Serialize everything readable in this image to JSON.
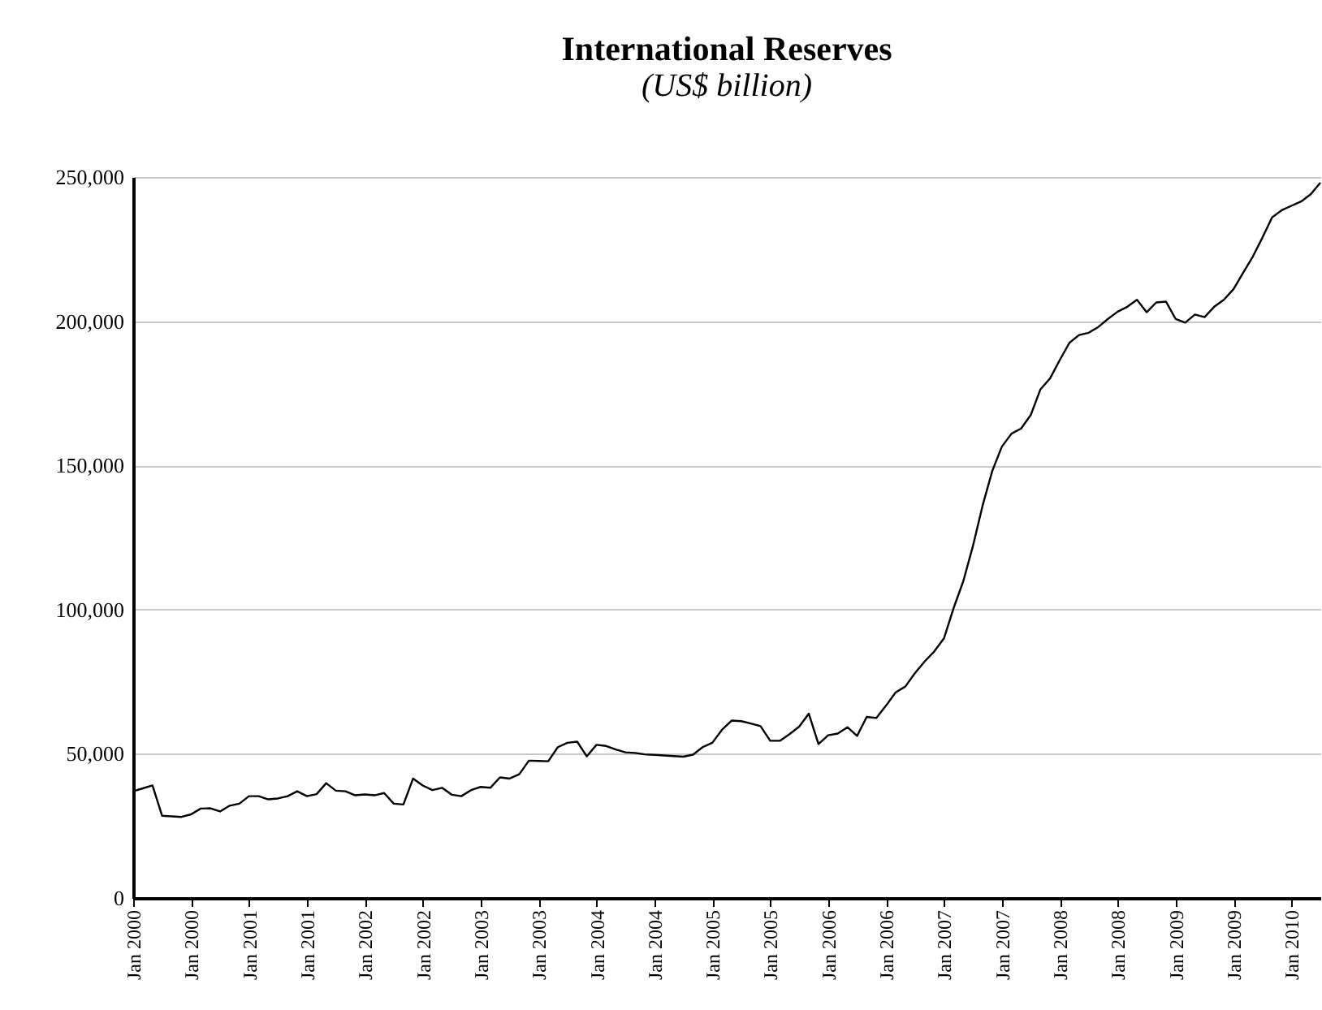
{
  "chart_data": {
    "type": "line",
    "title": "International Reserves",
    "subtitle": "(US$ billion)",
    "categories": [
      "Jan 2000",
      null,
      null,
      null,
      null,
      null,
      "Jan 2000",
      null,
      null,
      null,
      null,
      null,
      "Jan 2001",
      null,
      null,
      null,
      null,
      null,
      "Jan 2001",
      null,
      null,
      null,
      null,
      null,
      "Jan 2002",
      null,
      null,
      null,
      null,
      null,
      "Jan 2002",
      null,
      null,
      null,
      null,
      null,
      "Jan 2003",
      null,
      null,
      null,
      null,
      null,
      "Jan 2003",
      null,
      null,
      null,
      null,
      null,
      "Jan 2004",
      null,
      null,
      null,
      null,
      null,
      "Jan 2004",
      null,
      null,
      null,
      null,
      null,
      "Jan 2005",
      null,
      null,
      null,
      null,
      null,
      "Jan 2005",
      null,
      null,
      null,
      null,
      null,
      "Jan 2006",
      null,
      null,
      null,
      null,
      null,
      "Jan 2006",
      null,
      null,
      null,
      null,
      null,
      "Jan 2007",
      null,
      null,
      null,
      null,
      null,
      "Jan 2007",
      null,
      null,
      null,
      null,
      null,
      "Jan 2008",
      null,
      null,
      null,
      null,
      null,
      "Jan 2008",
      null,
      null,
      null,
      null,
      null,
      "Jan 2009",
      null,
      null,
      null,
      null,
      null,
      "Jan 2009",
      null,
      null,
      null,
      null,
      null,
      "Jan 2010",
      null,
      null,
      null
    ],
    "series": [
      {
        "color": "#000000",
        "values": [
          37000,
          38000,
          39000,
          28500,
          28300,
          28100,
          29000,
          31000,
          31100,
          30000,
          32000,
          32700,
          35300,
          35300,
          34200,
          34500,
          35300,
          37000,
          35300,
          36000,
          39800,
          37200,
          37000,
          35600,
          35900,
          35600,
          36400,
          32700,
          32400,
          41400,
          39000,
          37400,
          38200,
          35800,
          35300,
          37400,
          38500,
          38200,
          41800,
          41400,
          42900,
          47600,
          47500,
          47400,
          52300,
          53800,
          54200,
          49100,
          53100,
          52700,
          51500,
          50500,
          50300,
          49800,
          49600,
          49400,
          49200,
          49000,
          49700,
          52300,
          53800,
          58300,
          61500,
          61300,
          60500,
          59600,
          54500,
          54500,
          56800,
          59400,
          63900,
          53400,
          56400,
          57000,
          59200,
          56200,
          62800,
          62400,
          66700,
          71300,
          73300,
          78000,
          82000,
          85500,
          90000,
          100500,
          109800,
          122000,
          136000,
          148000,
          156500,
          161000,
          162800,
          167500,
          176400,
          180200,
          186500,
          192500,
          195200,
          196000,
          198000,
          200800,
          203300,
          205000,
          207400,
          203100,
          206500,
          206800,
          200800,
          199500,
          202300,
          201400,
          205000,
          207400,
          211100,
          216800,
          222400,
          229000,
          236000,
          238500,
          240000,
          241500,
          244000,
          248000
        ]
      }
    ],
    "ylim": [
      0,
      250000
    ],
    "yticks": [
      0,
      {
        "value": 50000,
        "label": "50,000"
      },
      {
        "value": 100000,
        "label": "100,000"
      },
      {
        "value": 150000,
        "label": "150,000"
      },
      {
        "value": 200000,
        "label": "200,000"
      },
      {
        "value": 250000,
        "label": "250,000"
      }
    ],
    "grid": "y",
    "line_style": "solid"
  }
}
